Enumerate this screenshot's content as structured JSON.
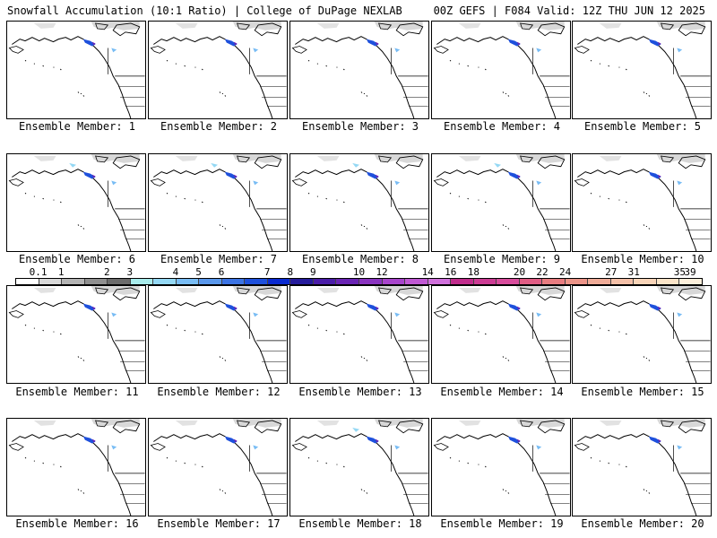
{
  "header": {
    "left_title": "Snowfall Accumulation (10:1 Ratio) | College of DuPage NEXLAB",
    "right_title": "00Z GEFS | F084 Valid: 12Z THU JUN 12 2025"
  },
  "legend": {
    "ticks": [
      "0.1",
      "1",
      "2",
      "3",
      "4",
      "5",
      "6",
      "7",
      "8",
      "9",
      "10",
      "12",
      "14",
      "16",
      "18",
      "20",
      "22",
      "24",
      "27",
      "31",
      "35",
      "39"
    ],
    "colors": [
      "#ffffff",
      "#d8d8d8",
      "#b4b4b4",
      "#909090",
      "#6c6c6c",
      "#a8ecec",
      "#94d8f4",
      "#78bcf4",
      "#5a98ec",
      "#3c74e4",
      "#1e50dc",
      "#0a2ad0",
      "#261c9c",
      "#4a1ca8",
      "#6a24b4",
      "#8a34c0",
      "#a844cc",
      "#c058d4",
      "#d070dc",
      "#c02c8c",
      "#cc3c94",
      "#d84c9c",
      "#e05c84",
      "#e87c80",
      "#ec9488",
      "#f0ac98",
      "#f4c0a8",
      "#f8d4b8",
      "#fbe4c8",
      "#fdf0dc"
    ]
  },
  "panels": [
    {
      "label": "Ensemble Member: 1"
    },
    {
      "label": "Ensemble Member: 2"
    },
    {
      "label": "Ensemble Member: 3"
    },
    {
      "label": "Ensemble Member: 4"
    },
    {
      "label": "Ensemble Member: 5"
    },
    {
      "label": "Ensemble Member: 6"
    },
    {
      "label": "Ensemble Member: 7"
    },
    {
      "label": "Ensemble Member: 8"
    },
    {
      "label": "Ensemble Member: 9"
    },
    {
      "label": "Ensemble Member: 10"
    },
    {
      "label": "Ensemble Member: 11"
    },
    {
      "label": "Ensemble Member: 12"
    },
    {
      "label": "Ensemble Member: 13"
    },
    {
      "label": "Ensemble Member: 14"
    },
    {
      "label": "Ensemble Member: 15"
    },
    {
      "label": "Ensemble Member: 16"
    },
    {
      "label": "Ensemble Member: 17"
    },
    {
      "label": "Ensemble Member: 18"
    },
    {
      "label": "Ensemble Member: 19"
    },
    {
      "label": "Ensemble Member: 20"
    }
  ]
}
